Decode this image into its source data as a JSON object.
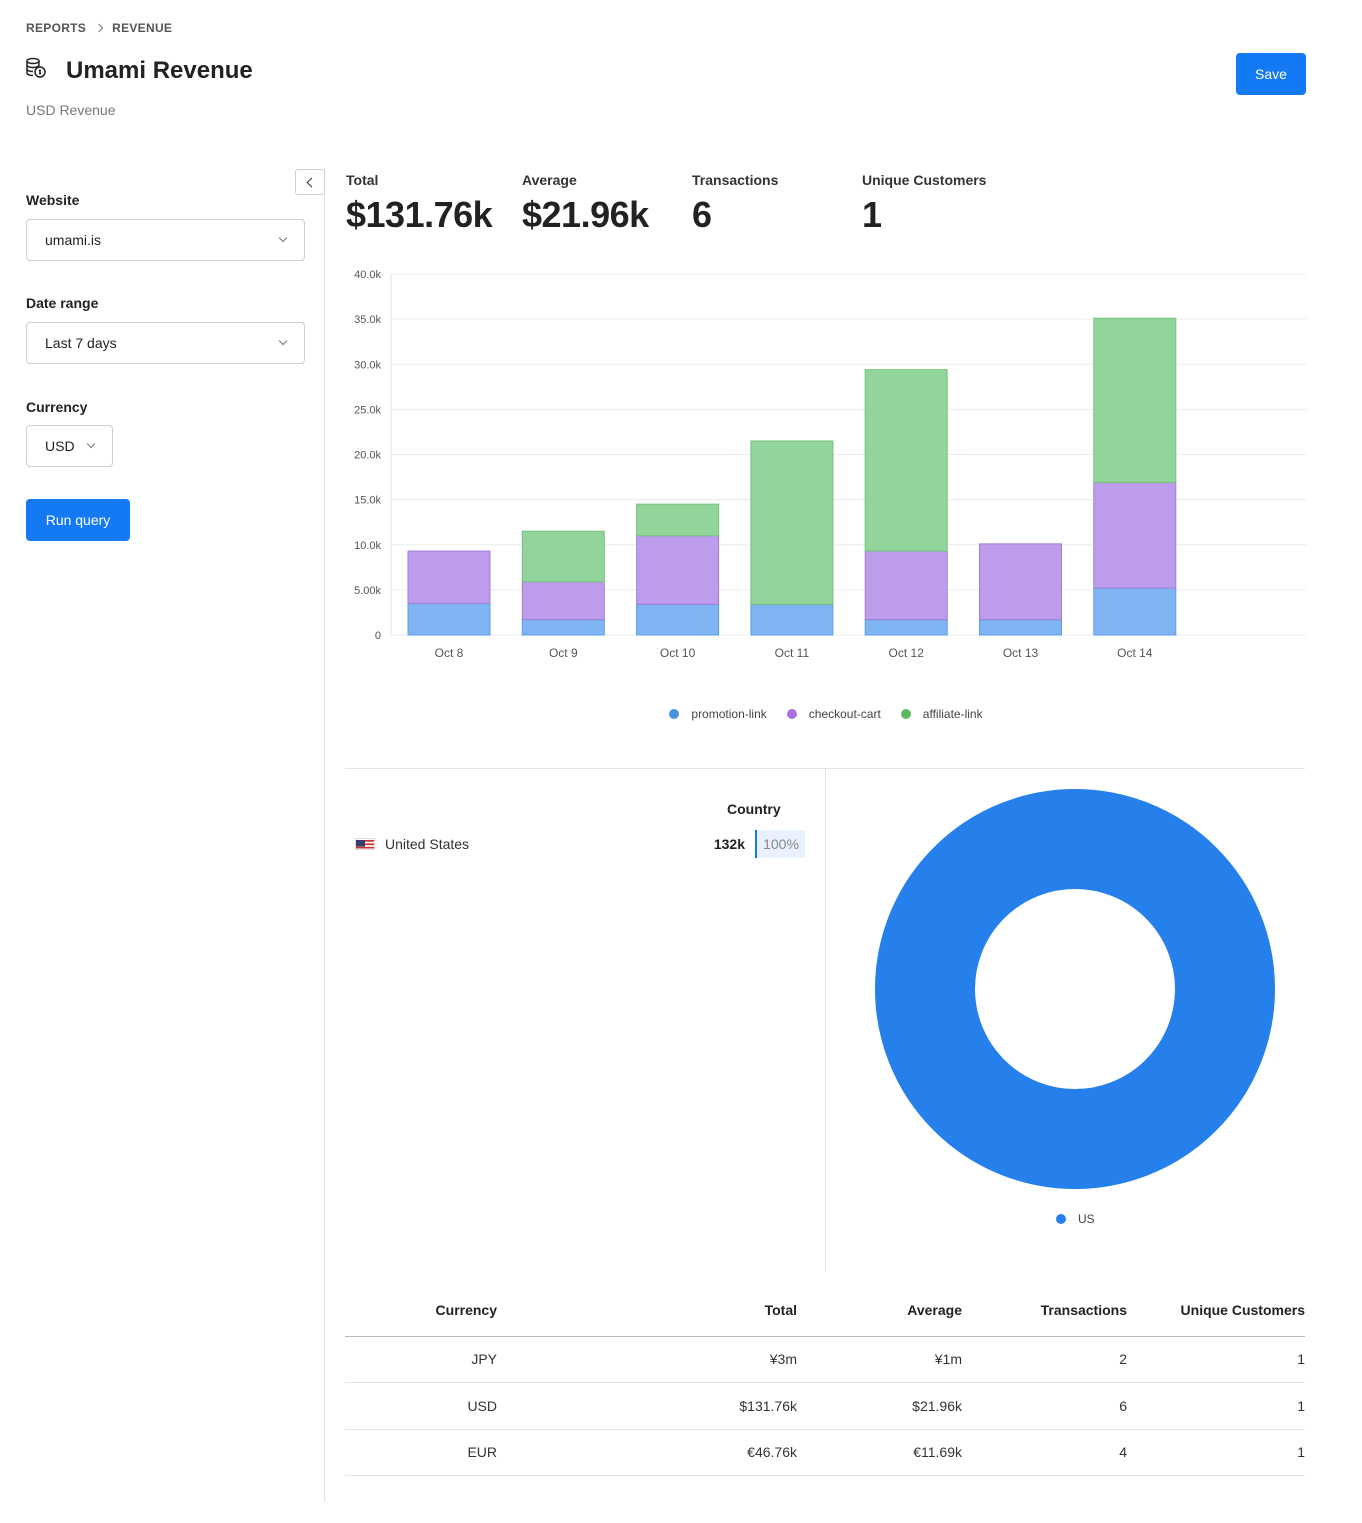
{
  "breadcrumb": {
    "parent": "REPORTS",
    "current": "REVENUE"
  },
  "header": {
    "title": "Umami Revenue",
    "subtitle": "USD Revenue",
    "icon": "coins-icon",
    "save_label": "Save"
  },
  "sidebar": {
    "website": {
      "label": "Website",
      "value": "umami.is"
    },
    "date_range": {
      "label": "Date range",
      "value": "Last 7 days"
    },
    "currency": {
      "label": "Currency",
      "value": "USD"
    },
    "run_label": "Run query"
  },
  "metrics": [
    {
      "label": "Total",
      "value": "$131.76k"
    },
    {
      "label": "Average",
      "value": "$21.96k"
    },
    {
      "label": "Transactions",
      "value": "6"
    },
    {
      "label": "Unique Customers",
      "value": "1"
    }
  ],
  "colors": {
    "accent": "#147af3",
    "promotion": "#7fb4f3",
    "checkout": "#bd9deb",
    "affiliate": "#92d49a",
    "donut": "#2680eb"
  },
  "chart_data": {
    "type": "bar",
    "stacked": true,
    "categories": [
      "Oct 8",
      "Oct 9",
      "Oct 10",
      "Oct 11",
      "Oct 12",
      "Oct 13",
      "Oct 14"
    ],
    "series": [
      {
        "name": "promotion-link",
        "values": [
          3500,
          1700,
          3400,
          3400,
          1700,
          1700,
          5200
        ]
      },
      {
        "name": "checkout-cart",
        "values": [
          5800,
          4200,
          7600,
          0,
          7600,
          8400,
          11700
        ]
      },
      {
        "name": "affiliate-link",
        "values": [
          0,
          5600,
          3500,
          18100,
          20100,
          0,
          18200
        ]
      }
    ],
    "ylim": [
      0,
      40000
    ],
    "yticks": [
      "0",
      "5.00k",
      "10.0k",
      "15.0k",
      "20.0k",
      "25.0k",
      "30.0k",
      "35.0k",
      "40.0k"
    ],
    "grid": true,
    "legend": "bottom"
  },
  "country": {
    "header": "Country",
    "rows": [
      {
        "name": "United States",
        "value": "132k",
        "percent": "100%"
      }
    ]
  },
  "donut": {
    "type": "pie",
    "labels": [
      "US"
    ],
    "values": [
      100
    ],
    "legend": "bottom"
  },
  "currency_table": {
    "headers": [
      "Currency",
      "Total",
      "Average",
      "Transactions",
      "Unique Customers"
    ],
    "rows": [
      [
        "JPY",
        "¥3m",
        "¥1m",
        "2",
        "1"
      ],
      [
        "USD",
        "$131.76k",
        "$21.96k",
        "6",
        "1"
      ],
      [
        "EUR",
        "€46.76k",
        "€11.69k",
        "4",
        "1"
      ]
    ]
  }
}
